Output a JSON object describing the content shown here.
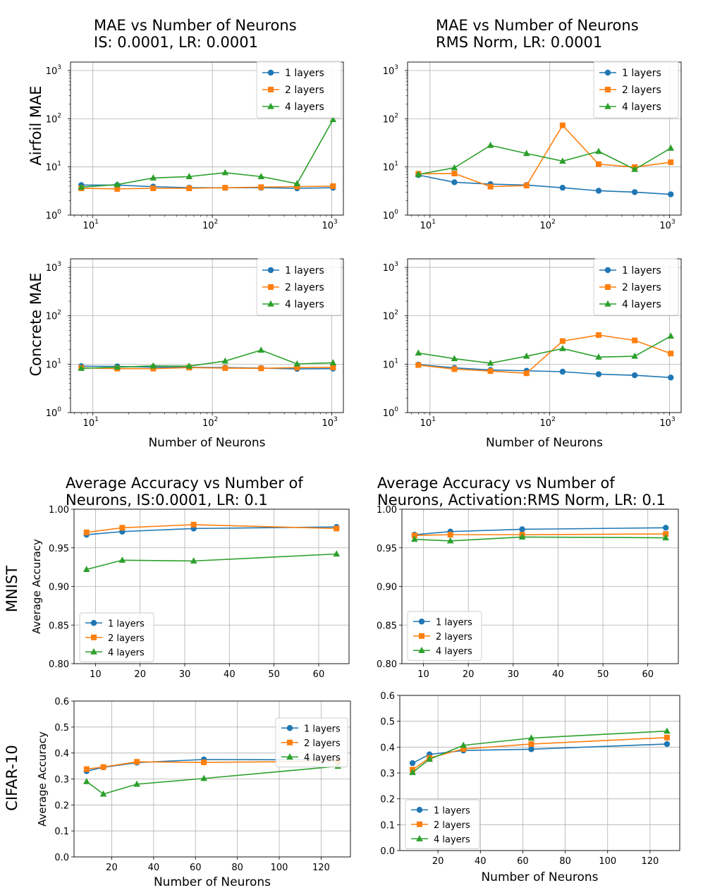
{
  "colors": {
    "1 layers": "#1f77b4",
    "2 layers": "#ff7f0e",
    "4 layers": "#2ca02c"
  },
  "row_labels": {
    "airfoil": "Airfoil  MAE",
    "concrete": "Concrete MAE",
    "mnist": "MNIST",
    "cifar": "CIFAR-10"
  },
  "chart_data": [
    {
      "id": "airfoil_is",
      "type": "line",
      "title": [
        "MAE vs Number of Neurons",
        "IS: 0.0001, LR: 0.0001"
      ],
      "xlabel": "",
      "ylabel": "",
      "xscale": "log",
      "yscale": "log",
      "xlim": [
        6.5,
        1250
      ],
      "ylim": [
        1,
        1500
      ],
      "xticks": [
        10,
        100,
        1000
      ],
      "yticks": [
        1,
        10,
        100,
        1000
      ],
      "legend": "top-right",
      "x": [
        8,
        16,
        32,
        64,
        128,
        256,
        512,
        1024
      ],
      "series": [
        {
          "name": "1 layers",
          "marker": "circle",
          "values": [
            4.2,
            4.2,
            3.9,
            3.7,
            3.7,
            3.7,
            3.6,
            3.7
          ]
        },
        {
          "name": "2 layers",
          "marker": "square",
          "values": [
            3.6,
            3.5,
            3.6,
            3.6,
            3.7,
            3.8,
            3.9,
            4.0
          ]
        },
        {
          "name": "4 layers",
          "marker": "triangle",
          "values": [
            3.8,
            4.3,
            5.9,
            6.3,
            7.6,
            6.3,
            4.5,
            96
          ]
        }
      ]
    },
    {
      "id": "airfoil_rms",
      "type": "line",
      "title": [
        "MAE vs Number of Neurons",
        "RMS Norm, LR: 0.0001"
      ],
      "xlabel": "",
      "ylabel": "",
      "xscale": "log",
      "yscale": "log",
      "xlim": [
        6.5,
        1250
      ],
      "ylim": [
        1,
        1500
      ],
      "xticks": [
        10,
        100,
        1000
      ],
      "yticks": [
        1,
        10,
        100,
        1000
      ],
      "legend": "top-right",
      "x": [
        8,
        16,
        32,
        64,
        128,
        256,
        512,
        1024
      ],
      "series": [
        {
          "name": "1 layers",
          "marker": "circle",
          "values": [
            6.8,
            4.8,
            4.4,
            4.2,
            3.7,
            3.2,
            3.0,
            2.7
          ]
        },
        {
          "name": "2 layers",
          "marker": "square",
          "values": [
            7.2,
            7.3,
            3.9,
            4.1,
            73,
            11.4,
            9.9,
            12.5
          ]
        },
        {
          "name": "4 layers",
          "marker": "triangle",
          "values": [
            7.0,
            9.6,
            28,
            19,
            13.2,
            21,
            8.9,
            24.5
          ]
        }
      ]
    },
    {
      "id": "concrete_is",
      "type": "line",
      "title": [],
      "xlabel": "Number of Neurons",
      "ylabel": "",
      "xscale": "log",
      "yscale": "log",
      "xlim": [
        6.5,
        1250
      ],
      "ylim": [
        1,
        1500
      ],
      "xticks": [
        10,
        100,
        1000
      ],
      "yticks": [
        1,
        10,
        100,
        1000
      ],
      "legend": "top-right",
      "x": [
        8,
        16,
        32,
        64,
        128,
        256,
        512,
        1024
      ],
      "series": [
        {
          "name": "1 layers",
          "marker": "circle",
          "values": [
            9.1,
            9.0,
            8.7,
            8.6,
            8.5,
            8.3,
            8.0,
            8.1
          ]
        },
        {
          "name": "2 layers",
          "marker": "square",
          "values": [
            8.4,
            8.1,
            8.1,
            8.5,
            8.3,
            8.2,
            8.5,
            8.6
          ]
        },
        {
          "name": "4 layers",
          "marker": "triangle",
          "values": [
            8.2,
            8.7,
            9.2,
            9.1,
            11.6,
            19.5,
            10.1,
            10.7
          ]
        }
      ]
    },
    {
      "id": "concrete_rms",
      "type": "line",
      "title": [],
      "xlabel": "Number of Neurons",
      "ylabel": "",
      "xscale": "log",
      "yscale": "log",
      "xlim": [
        6.5,
        1250
      ],
      "ylim": [
        1,
        1500
      ],
      "xticks": [
        10,
        100,
        1000
      ],
      "yticks": [
        1,
        10,
        100,
        1000
      ],
      "legend": "top-right",
      "x": [
        8,
        16,
        32,
        64,
        128,
        256,
        512,
        1024
      ],
      "series": [
        {
          "name": "1 layers",
          "marker": "circle",
          "values": [
            9.8,
            8.4,
            7.6,
            7.3,
            7.0,
            6.2,
            5.9,
            5.3
          ]
        },
        {
          "name": "2 layers",
          "marker": "square",
          "values": [
            9.6,
            7.9,
            7.2,
            6.5,
            30,
            40,
            31,
            16.6
          ]
        },
        {
          "name": "4 layers",
          "marker": "triangle",
          "values": [
            17,
            13,
            10.5,
            14.6,
            21,
            14,
            14.6,
            38
          ]
        }
      ]
    },
    {
      "id": "mnist_is",
      "type": "line",
      "title": [
        "Average Accuracy vs Number of",
        "Neurons, IS:0.0001, LR: 0.1"
      ],
      "xlabel": "",
      "ylabel": "Average Accuracy",
      "xscale": "linear",
      "yscale": "linear",
      "xlim": [
        5.2,
        66.8
      ],
      "ylim": [
        0.8,
        1.0
      ],
      "xticks": [
        10,
        20,
        30,
        40,
        50,
        60
      ],
      "yticks": [
        0.8,
        0.85,
        0.9,
        0.95,
        1.0
      ],
      "ytick_labels": [
        "0.80",
        "0.85",
        "0.90",
        "0.95",
        "1.00"
      ],
      "legend": "bottom-left",
      "x": [
        8,
        16,
        32,
        64
      ],
      "series": [
        {
          "name": "1 layers",
          "marker": "circle",
          "values": [
            0.967,
            0.971,
            0.975,
            0.977
          ]
        },
        {
          "name": "2 layers",
          "marker": "square",
          "values": [
            0.97,
            0.976,
            0.98,
            0.975
          ]
        },
        {
          "name": "4 layers",
          "marker": "triangle",
          "values": [
            0.922,
            0.934,
            0.933,
            0.942
          ]
        }
      ]
    },
    {
      "id": "mnist_rms",
      "type": "line",
      "title": [
        "Average Accuracy vs Number of",
        "Neurons, Activation:RMS Norm, LR: 0.1"
      ],
      "xlabel": "",
      "ylabel": "",
      "xscale": "linear",
      "yscale": "linear",
      "xlim": [
        5.2,
        66.8
      ],
      "ylim": [
        0.8,
        1.0
      ],
      "xticks": [
        10,
        20,
        30,
        40,
        50,
        60
      ],
      "yticks": [
        0.8,
        0.85,
        0.9,
        0.95,
        1.0
      ],
      "ytick_labels": [
        "0.80",
        "0.85",
        "0.90",
        "0.95",
        "1.00"
      ],
      "legend": "bottom-left",
      "x": [
        8,
        16,
        32,
        64
      ],
      "series": [
        {
          "name": "1 layers",
          "marker": "circle",
          "values": [
            0.967,
            0.971,
            0.974,
            0.976
          ]
        },
        {
          "name": "2 layers",
          "marker": "square",
          "values": [
            0.966,
            0.967,
            0.967,
            0.968
          ]
        },
        {
          "name": "4 layers",
          "marker": "triangle",
          "values": [
            0.961,
            0.959,
            0.964,
            0.963
          ]
        }
      ]
    },
    {
      "id": "cifar_is",
      "type": "line",
      "title": [],
      "xlabel": "Number of Neurons",
      "ylabel": "Average Accuracy",
      "xscale": "linear",
      "yscale": "linear",
      "xlim": [
        2,
        134
      ],
      "ylim": [
        0.0,
        0.6
      ],
      "xticks": [
        20,
        40,
        60,
        80,
        100,
        120
      ],
      "yticks": [
        0.0,
        0.1,
        0.2,
        0.3,
        0.4,
        0.5,
        0.6
      ],
      "ytick_labels": [
        "0.0",
        "0.1",
        "0.2",
        "0.3",
        "0.4",
        "0.5",
        "0.6"
      ],
      "legend": "top-right",
      "x": [
        8,
        16,
        32,
        64,
        128
      ],
      "series": [
        {
          "name": "1 layers",
          "marker": "circle",
          "values": [
            0.33,
            0.345,
            0.363,
            0.375,
            0.373
          ]
        },
        {
          "name": "2 layers",
          "marker": "square",
          "values": [
            0.338,
            0.346,
            0.366,
            0.364,
            0.368
          ]
        },
        {
          "name": "4 layers",
          "marker": "triangle",
          "values": [
            0.29,
            0.242,
            0.28,
            0.302,
            0.349
          ]
        }
      ]
    },
    {
      "id": "cifar_rms",
      "type": "line",
      "title": [],
      "xlabel": "Number of Neurons",
      "ylabel": "",
      "xscale": "linear",
      "yscale": "linear",
      "xlim": [
        2,
        134
      ],
      "ylim": [
        0.0,
        0.6
      ],
      "xticks": [
        20,
        40,
        60,
        80,
        100,
        120
      ],
      "yticks": [
        0.0,
        0.1,
        0.2,
        0.3,
        0.4,
        0.5,
        0.6
      ],
      "ytick_labels": [
        "0.0",
        "0.1",
        "0.2",
        "0.3",
        "0.4",
        "0.5",
        "0.6"
      ],
      "legend": "bottom-left",
      "x": [
        8,
        16,
        32,
        64,
        128
      ],
      "series": [
        {
          "name": "1 layers",
          "marker": "circle",
          "values": [
            0.338,
            0.372,
            0.387,
            0.392,
            0.412
          ]
        },
        {
          "name": "2 layers",
          "marker": "square",
          "values": [
            0.313,
            0.358,
            0.393,
            0.412,
            0.437
          ]
        },
        {
          "name": "4 layers",
          "marker": "triangle",
          "values": [
            0.302,
            0.353,
            0.407,
            0.435,
            0.462
          ]
        }
      ]
    }
  ]
}
